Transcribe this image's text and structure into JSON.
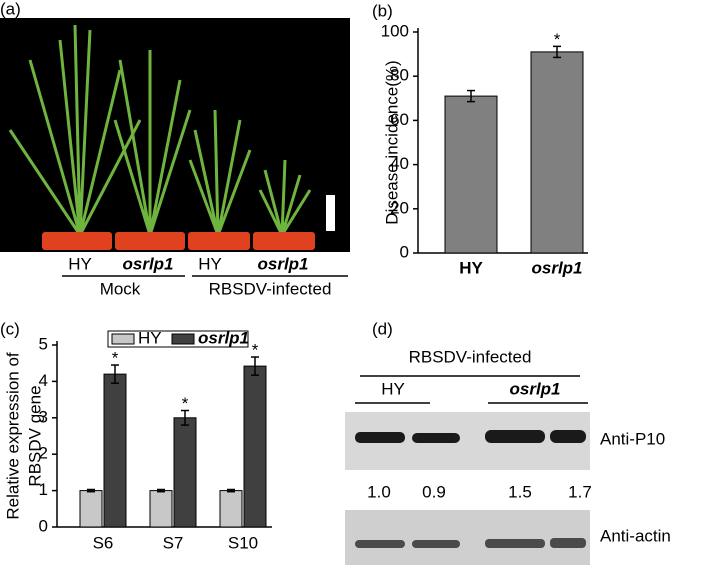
{
  "panel_a": {
    "panel_label": "(a)",
    "genotypes": [
      "HY",
      "osrlp1",
      "HY",
      "osrlp1"
    ],
    "groups": [
      "Mock",
      "RBSDV-infected"
    ]
  },
  "chart_data": [
    {
      "type": "bar",
      "panel_label": "(b)",
      "y_label": "Disease incidence(%)",
      "categories": [
        "HY",
        "osrlp1"
      ],
      "values": [
        71,
        91
      ],
      "errors": [
        2.5,
        2.5
      ],
      "significance": [
        null,
        "*"
      ],
      "color": "#808080",
      "ylim": [
        0,
        100
      ],
      "yticks": [
        0,
        20,
        40,
        60,
        80,
        100
      ]
    },
    {
      "type": "grouped-bar",
      "panel_label": "(c)",
      "y_label": [
        "Relative expression of",
        "RBSDV gene"
      ],
      "categories": [
        "S6",
        "S7",
        "S10"
      ],
      "series": [
        {
          "name": "HY",
          "color": "#c8c8c8",
          "values": [
            1,
            1,
            1
          ],
          "errors": [
            0.03,
            0.03,
            0.03
          ]
        },
        {
          "name": "osrlp1",
          "color": "#404040",
          "values": [
            4.2,
            3.0,
            4.42
          ],
          "errors": [
            0.25,
            0.2,
            0.25
          ],
          "significance": [
            "*",
            "*",
            "*"
          ]
        }
      ],
      "ylim": [
        0,
        5
      ],
      "yticks": [
        0,
        1,
        2,
        3,
        4,
        5
      ],
      "legend": "top"
    }
  ],
  "panel_d": {
    "panel_label": "(d)",
    "treatment": "RBSDV-infected",
    "genotypes": [
      "HY",
      "osrlp1"
    ],
    "blots": [
      "Anti-P10",
      "Anti-actin"
    ],
    "quantification": [
      "1.0",
      "0.9",
      "1.5",
      "1.7"
    ]
  }
}
